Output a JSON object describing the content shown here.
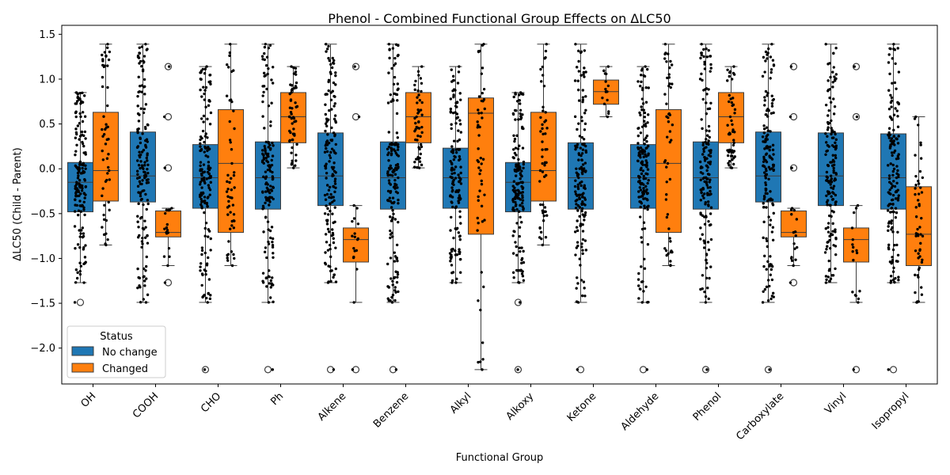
{
  "chart_data": {
    "type": "box",
    "title": "Phenol - Combined Functional Group Effects on ΔLC50",
    "xlabel": "Functional Group",
    "ylabel": "ΔLC50 (Child - Parent)",
    "ylim": [
      -2.4,
      1.6
    ],
    "yticks": [
      -2.0,
      -1.5,
      -1.0,
      -0.5,
      0.0,
      0.5,
      1.0,
      1.5
    ],
    "categories": [
      "OH",
      "COOH",
      "CHO",
      "Ph",
      "Alkene",
      "Benzene",
      "Alkyl",
      "Alkoxy",
      "Ketone",
      "Aldehyde",
      "Phenol",
      "Carboxylate",
      "Vinyl",
      "Isopropyl"
    ],
    "legend": {
      "title": "Status",
      "placement": "lower-left"
    },
    "series": [
      {
        "name": "No change",
        "color": "#1f77b4",
        "boxes": [
          {
            "whislo": -1.27,
            "q1": -0.48,
            "med": -0.15,
            "q3": 0.07,
            "whishi": 0.85,
            "fliers": [
              -1.49
            ]
          },
          {
            "whislo": -1.49,
            "q1": -0.37,
            "med": -0.08,
            "q3": 0.41,
            "whishi": 1.39,
            "fliers": []
          },
          {
            "whislo": -1.49,
            "q1": -0.44,
            "med": -0.1,
            "q3": 0.27,
            "whishi": 1.14,
            "fliers": [
              -2.24
            ]
          },
          {
            "whislo": -1.49,
            "q1": -0.45,
            "med": -0.1,
            "q3": 0.3,
            "whishi": 1.39,
            "fliers": [
              -2.24
            ]
          },
          {
            "whislo": -1.27,
            "q1": -0.41,
            "med": -0.08,
            "q3": 0.4,
            "whishi": 1.39,
            "fliers": [
              -2.24
            ]
          },
          {
            "whislo": -1.49,
            "q1": -0.45,
            "med": -0.1,
            "q3": 0.3,
            "whishi": 1.39,
            "fliers": [
              -2.24
            ]
          },
          {
            "whislo": -1.27,
            "q1": -0.44,
            "med": -0.1,
            "q3": 0.23,
            "whishi": 1.14,
            "fliers": []
          },
          {
            "whislo": -1.27,
            "q1": -0.48,
            "med": -0.15,
            "q3": 0.07,
            "whishi": 0.85,
            "fliers": [
              -1.49,
              -2.24
            ]
          },
          {
            "whislo": -1.49,
            "q1": -0.45,
            "med": -0.1,
            "q3": 0.29,
            "whishi": 1.39,
            "fliers": [
              -2.24
            ]
          },
          {
            "whislo": -1.49,
            "q1": -0.44,
            "med": -0.1,
            "q3": 0.27,
            "whishi": 1.14,
            "fliers": [
              -2.24
            ]
          },
          {
            "whislo": -1.49,
            "q1": -0.45,
            "med": -0.1,
            "q3": 0.3,
            "whishi": 1.39,
            "fliers": [
              -2.24
            ]
          },
          {
            "whislo": -1.49,
            "q1": -0.37,
            "med": -0.08,
            "q3": 0.41,
            "whishi": 1.39,
            "fliers": [
              -2.24
            ]
          },
          {
            "whislo": -1.27,
            "q1": -0.41,
            "med": -0.08,
            "q3": 0.4,
            "whishi": 1.39,
            "fliers": []
          },
          {
            "whislo": -1.27,
            "q1": -0.45,
            "med": -0.1,
            "q3": 0.39,
            "whishi": 1.39,
            "fliers": [
              -2.24
            ]
          }
        ]
      },
      {
        "name": "Changed",
        "color": "#ff7f0e",
        "boxes": [
          {
            "whislo": -0.85,
            "q1": -0.36,
            "med": -0.02,
            "q3": 0.63,
            "whishi": 1.39,
            "fliers": []
          },
          {
            "whislo": -1.08,
            "q1": -0.76,
            "med": -0.71,
            "q3": -0.47,
            "whishi": -0.44,
            "fliers": [
              1.14,
              0.58,
              0.01,
              -1.27
            ]
          },
          {
            "whislo": -1.08,
            "q1": -0.71,
            "med": 0.06,
            "q3": 0.66,
            "whishi": 1.39,
            "fliers": []
          },
          {
            "whislo": 0.01,
            "q1": 0.29,
            "med": 0.58,
            "q3": 0.85,
            "whishi": 1.14,
            "fliers": []
          },
          {
            "whislo": -1.49,
            "q1": -1.04,
            "med": -0.79,
            "q3": -0.66,
            "whishi": -0.41,
            "fliers": [
              1.14,
              0.58,
              -2.24
            ]
          },
          {
            "whislo": 0.01,
            "q1": 0.29,
            "med": 0.58,
            "q3": 0.85,
            "whishi": 1.14,
            "fliers": []
          },
          {
            "whislo": -2.24,
            "q1": -0.73,
            "med": 0.62,
            "q3": 0.79,
            "whishi": 1.39,
            "fliers": []
          },
          {
            "whislo": -0.85,
            "q1": -0.36,
            "med": -0.02,
            "q3": 0.63,
            "whishi": 1.39,
            "fliers": []
          },
          {
            "whislo": 0.58,
            "q1": 0.72,
            "med": 0.86,
            "q3": 0.99,
            "whishi": 1.14,
            "fliers": []
          },
          {
            "whislo": -1.08,
            "q1": -0.71,
            "med": 0.06,
            "q3": 0.66,
            "whishi": 1.39,
            "fliers": []
          },
          {
            "whislo": 0.01,
            "q1": 0.29,
            "med": 0.58,
            "q3": 0.85,
            "whishi": 1.14,
            "fliers": []
          },
          {
            "whislo": -1.08,
            "q1": -0.76,
            "med": -0.71,
            "q3": -0.47,
            "whishi": -0.44,
            "fliers": [
              1.14,
              0.58,
              0.01,
              -1.27
            ]
          },
          {
            "whislo": -1.49,
            "q1": -1.04,
            "med": -0.79,
            "q3": -0.66,
            "whishi": -0.41,
            "fliers": [
              1.14,
              0.58,
              -2.24
            ]
          },
          {
            "whislo": -1.49,
            "q1": -1.08,
            "med": -0.73,
            "q3": -0.2,
            "whishi": 0.58,
            "fliers": []
          }
        ]
      }
    ]
  }
}
